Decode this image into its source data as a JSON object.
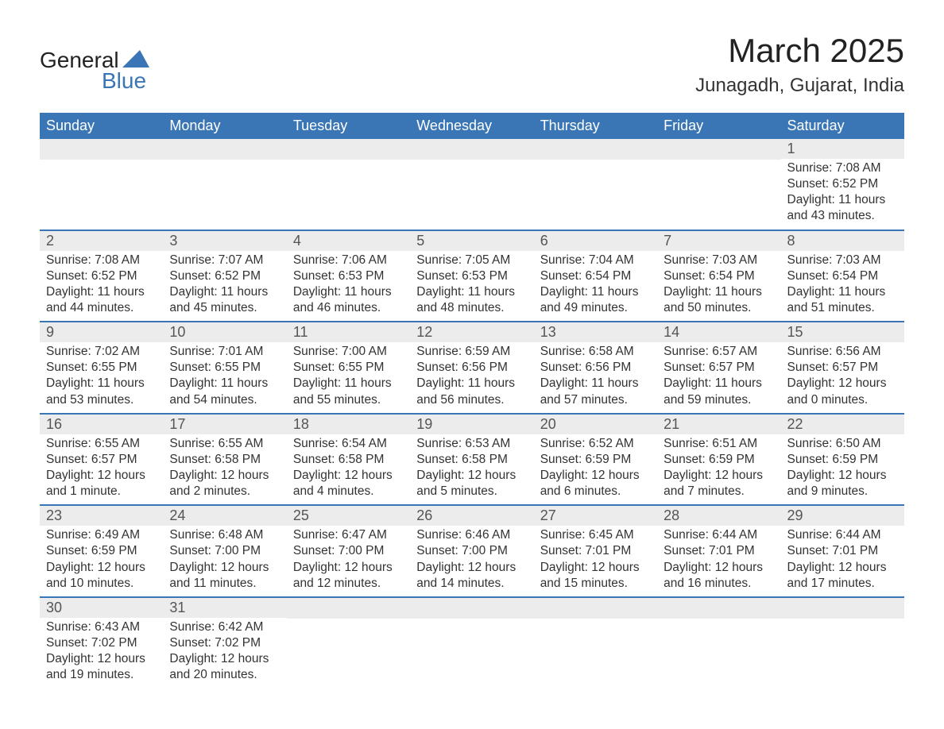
{
  "logo": {
    "general": "General",
    "blue": "Blue",
    "shape_color": "#3a76b5"
  },
  "title": "March 2025",
  "location": "Junagadh, Gujarat, India",
  "colors": {
    "header_bg": "#3a76b5",
    "header_text": "#ffffff",
    "day_number_bg": "#ececec",
    "text": "#333333",
    "border": "#3a76b5"
  },
  "weekdays": [
    "Sunday",
    "Monday",
    "Tuesday",
    "Wednesday",
    "Thursday",
    "Friday",
    "Saturday"
  ],
  "weeks": [
    [
      null,
      null,
      null,
      null,
      null,
      null,
      {
        "n": "1",
        "sunrise": "Sunrise: 7:08 AM",
        "sunset": "Sunset: 6:52 PM",
        "daylight": "Daylight: 11 hours and 43 minutes."
      }
    ],
    [
      {
        "n": "2",
        "sunrise": "Sunrise: 7:08 AM",
        "sunset": "Sunset: 6:52 PM",
        "daylight": "Daylight: 11 hours and 44 minutes."
      },
      {
        "n": "3",
        "sunrise": "Sunrise: 7:07 AM",
        "sunset": "Sunset: 6:52 PM",
        "daylight": "Daylight: 11 hours and 45 minutes."
      },
      {
        "n": "4",
        "sunrise": "Sunrise: 7:06 AM",
        "sunset": "Sunset: 6:53 PM",
        "daylight": "Daylight: 11 hours and 46 minutes."
      },
      {
        "n": "5",
        "sunrise": "Sunrise: 7:05 AM",
        "sunset": "Sunset: 6:53 PM",
        "daylight": "Daylight: 11 hours and 48 minutes."
      },
      {
        "n": "6",
        "sunrise": "Sunrise: 7:04 AM",
        "sunset": "Sunset: 6:54 PM",
        "daylight": "Daylight: 11 hours and 49 minutes."
      },
      {
        "n": "7",
        "sunrise": "Sunrise: 7:03 AM",
        "sunset": "Sunset: 6:54 PM",
        "daylight": "Daylight: 11 hours and 50 minutes."
      },
      {
        "n": "8",
        "sunrise": "Sunrise: 7:03 AM",
        "sunset": "Sunset: 6:54 PM",
        "daylight": "Daylight: 11 hours and 51 minutes."
      }
    ],
    [
      {
        "n": "9",
        "sunrise": "Sunrise: 7:02 AM",
        "sunset": "Sunset: 6:55 PM",
        "daylight": "Daylight: 11 hours and 53 minutes."
      },
      {
        "n": "10",
        "sunrise": "Sunrise: 7:01 AM",
        "sunset": "Sunset: 6:55 PM",
        "daylight": "Daylight: 11 hours and 54 minutes."
      },
      {
        "n": "11",
        "sunrise": "Sunrise: 7:00 AM",
        "sunset": "Sunset: 6:55 PM",
        "daylight": "Daylight: 11 hours and 55 minutes."
      },
      {
        "n": "12",
        "sunrise": "Sunrise: 6:59 AM",
        "sunset": "Sunset: 6:56 PM",
        "daylight": "Daylight: 11 hours and 56 minutes."
      },
      {
        "n": "13",
        "sunrise": "Sunrise: 6:58 AM",
        "sunset": "Sunset: 6:56 PM",
        "daylight": "Daylight: 11 hours and 57 minutes."
      },
      {
        "n": "14",
        "sunrise": "Sunrise: 6:57 AM",
        "sunset": "Sunset: 6:57 PM",
        "daylight": "Daylight: 11 hours and 59 minutes."
      },
      {
        "n": "15",
        "sunrise": "Sunrise: 6:56 AM",
        "sunset": "Sunset: 6:57 PM",
        "daylight": "Daylight: 12 hours and 0 minutes."
      }
    ],
    [
      {
        "n": "16",
        "sunrise": "Sunrise: 6:55 AM",
        "sunset": "Sunset: 6:57 PM",
        "daylight": "Daylight: 12 hours and 1 minute."
      },
      {
        "n": "17",
        "sunrise": "Sunrise: 6:55 AM",
        "sunset": "Sunset: 6:58 PM",
        "daylight": "Daylight: 12 hours and 2 minutes."
      },
      {
        "n": "18",
        "sunrise": "Sunrise: 6:54 AM",
        "sunset": "Sunset: 6:58 PM",
        "daylight": "Daylight: 12 hours and 4 minutes."
      },
      {
        "n": "19",
        "sunrise": "Sunrise: 6:53 AM",
        "sunset": "Sunset: 6:58 PM",
        "daylight": "Daylight: 12 hours and 5 minutes."
      },
      {
        "n": "20",
        "sunrise": "Sunrise: 6:52 AM",
        "sunset": "Sunset: 6:59 PM",
        "daylight": "Daylight: 12 hours and 6 minutes."
      },
      {
        "n": "21",
        "sunrise": "Sunrise: 6:51 AM",
        "sunset": "Sunset: 6:59 PM",
        "daylight": "Daylight: 12 hours and 7 minutes."
      },
      {
        "n": "22",
        "sunrise": "Sunrise: 6:50 AM",
        "sunset": "Sunset: 6:59 PM",
        "daylight": "Daylight: 12 hours and 9 minutes."
      }
    ],
    [
      {
        "n": "23",
        "sunrise": "Sunrise: 6:49 AM",
        "sunset": "Sunset: 6:59 PM",
        "daylight": "Daylight: 12 hours and 10 minutes."
      },
      {
        "n": "24",
        "sunrise": "Sunrise: 6:48 AM",
        "sunset": "Sunset: 7:00 PM",
        "daylight": "Daylight: 12 hours and 11 minutes."
      },
      {
        "n": "25",
        "sunrise": "Sunrise: 6:47 AM",
        "sunset": "Sunset: 7:00 PM",
        "daylight": "Daylight: 12 hours and 12 minutes."
      },
      {
        "n": "26",
        "sunrise": "Sunrise: 6:46 AM",
        "sunset": "Sunset: 7:00 PM",
        "daylight": "Daylight: 12 hours and 14 minutes."
      },
      {
        "n": "27",
        "sunrise": "Sunrise: 6:45 AM",
        "sunset": "Sunset: 7:01 PM",
        "daylight": "Daylight: 12 hours and 15 minutes."
      },
      {
        "n": "28",
        "sunrise": "Sunrise: 6:44 AM",
        "sunset": "Sunset: 7:01 PM",
        "daylight": "Daylight: 12 hours and 16 minutes."
      },
      {
        "n": "29",
        "sunrise": "Sunrise: 6:44 AM",
        "sunset": "Sunset: 7:01 PM",
        "daylight": "Daylight: 12 hours and 17 minutes."
      }
    ],
    [
      {
        "n": "30",
        "sunrise": "Sunrise: 6:43 AM",
        "sunset": "Sunset: 7:02 PM",
        "daylight": "Daylight: 12 hours and 19 minutes."
      },
      {
        "n": "31",
        "sunrise": "Sunrise: 6:42 AM",
        "sunset": "Sunset: 7:02 PM",
        "daylight": "Daylight: 12 hours and 20 minutes."
      },
      null,
      null,
      null,
      null,
      null
    ]
  ]
}
